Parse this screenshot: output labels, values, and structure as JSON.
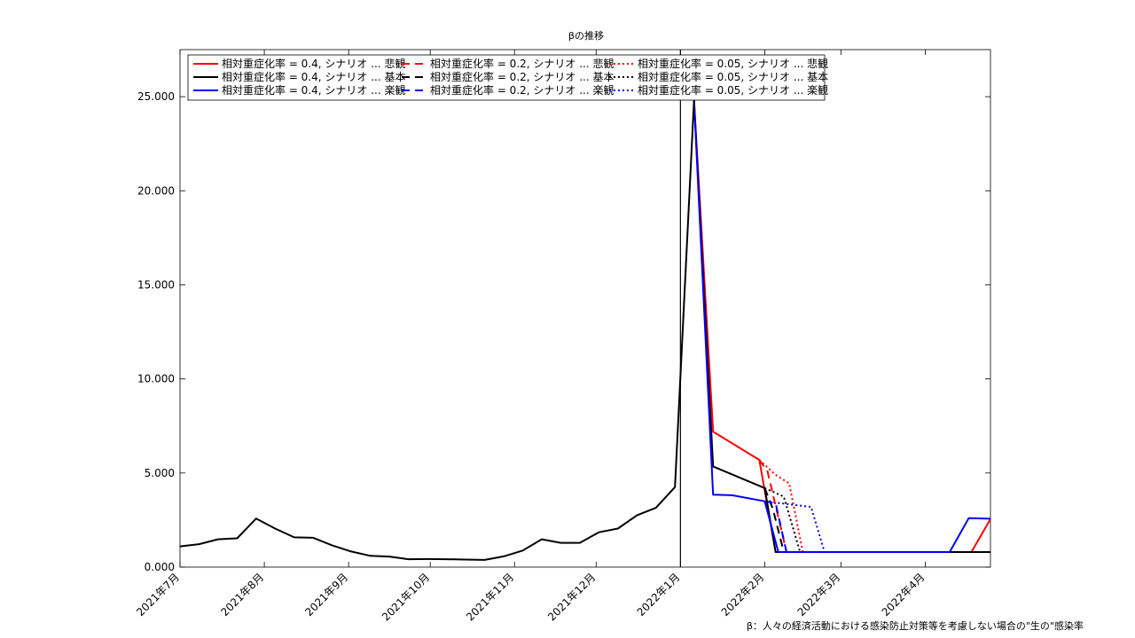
{
  "chart_data": {
    "type": "line",
    "title": "βの推移",
    "footnote": "β：人々の経済活動における感染防止対策等を考慮しない場合の\"生の\"感染率",
    "xlabel": "",
    "ylabel": "",
    "ylim": [
      0,
      27500
    ],
    "xlim": [
      "2021-07-01",
      "2022-04-25"
    ],
    "grid": false,
    "legend_position": "top-left",
    "y_ticks": [
      0,
      5000,
      10000,
      15000,
      20000,
      25000
    ],
    "y_tick_labels": [
      "0.000",
      "5.000",
      "10.000",
      "15.000",
      "20.000",
      "25.000"
    ],
    "x_ticks": [
      "2021-07-01",
      "2021-08-01",
      "2021-09-01",
      "2021-10-01",
      "2021-11-01",
      "2021-12-01",
      "2022-01-01",
      "2022-02-01",
      "2022-03-01",
      "2022-04-01"
    ],
    "x_tick_labels": [
      "2021年7月",
      "2021年8月",
      "2021年9月",
      "2021年10月",
      "2021年11月",
      "2021年12月",
      "2022年1月",
      "2022年2月",
      "2022年3月",
      "2022年4月"
    ],
    "vertical_line": "2022-01-01",
    "history": {
      "color": "#000000",
      "points": [
        [
          "2021-07-01",
          1100
        ],
        [
          "2021-07-08",
          1220
        ],
        [
          "2021-07-15",
          1480
        ],
        [
          "2021-07-22",
          1530
        ],
        [
          "2021-07-29",
          2580
        ],
        [
          "2021-08-05",
          2050
        ],
        [
          "2021-08-12",
          1580
        ],
        [
          "2021-08-19",
          1560
        ],
        [
          "2021-08-26",
          1150
        ],
        [
          "2021-09-02",
          830
        ],
        [
          "2021-09-09",
          600
        ],
        [
          "2021-09-16",
          560
        ],
        [
          "2021-09-23",
          420
        ],
        [
          "2021-09-30",
          430
        ],
        [
          "2021-10-07",
          420
        ],
        [
          "2021-10-14",
          400
        ],
        [
          "2021-10-21",
          380
        ],
        [
          "2021-10-28",
          570
        ],
        [
          "2021-11-04",
          880
        ],
        [
          "2021-11-11",
          1480
        ],
        [
          "2021-11-18",
          1290
        ],
        [
          "2021-11-25",
          1290
        ],
        [
          "2021-12-02",
          1850
        ],
        [
          "2021-12-09",
          2050
        ],
        [
          "2021-12-16",
          2750
        ],
        [
          "2021-12-23",
          3150
        ],
        [
          "2021-12-30",
          4250
        ],
        [
          "2022-01-06",
          24800
        ]
      ]
    },
    "series": [
      {
        "name": "相対重症化率 = 0.4, シナリオ ... 悲観",
        "color": "#ff0000",
        "dash": "solid",
        "points": [
          [
            "2022-01-06",
            24800
          ],
          [
            "2022-01-13",
            7200
          ],
          [
            "2022-01-30",
            5700
          ],
          [
            "2022-02-05",
            800
          ],
          [
            "2022-04-18",
            800
          ],
          [
            "2022-04-25",
            2550
          ]
        ]
      },
      {
        "name": "相対重症化率 = 0.4, シナリオ ... 基本",
        "color": "#000000",
        "dash": "solid",
        "points": [
          [
            "2022-01-06",
            24800
          ],
          [
            "2022-01-13",
            5350
          ],
          [
            "2022-02-01",
            4200
          ],
          [
            "2022-02-05",
            800
          ],
          [
            "2022-04-25",
            800
          ]
        ]
      },
      {
        "name": "相対重症化率 = 0.4, シナリオ ... 楽観",
        "color": "#0000ff",
        "dash": "solid",
        "points": [
          [
            "2022-01-06",
            24800
          ],
          [
            "2022-01-13",
            3850
          ],
          [
            "2022-01-20",
            3820
          ],
          [
            "2022-02-01",
            3500
          ],
          [
            "2022-02-06",
            800
          ],
          [
            "2022-04-10",
            800
          ],
          [
            "2022-04-17",
            2600
          ],
          [
            "2022-04-25",
            2570
          ]
        ]
      },
      {
        "name": "相対重症化率 = 0.2, シナリオ ... 悲観",
        "color": "#ff0000",
        "dash": "dash",
        "points": [
          [
            "2022-01-30",
            5700
          ],
          [
            "2022-02-02",
            5100
          ],
          [
            "2022-02-09",
            800
          ],
          [
            "2022-04-25",
            800
          ]
        ]
      },
      {
        "name": "相対重症化率 = 0.2, シナリオ ... 基本",
        "color": "#000000",
        "dash": "dash",
        "points": [
          [
            "2022-02-01",
            4200
          ],
          [
            "2022-02-04",
            3100
          ],
          [
            "2022-02-08",
            800
          ],
          [
            "2022-04-25",
            800
          ]
        ]
      },
      {
        "name": "相対重症化率 = 0.2, シナリオ ... 楽観",
        "color": "#0000ff",
        "dash": "dash",
        "points": [
          [
            "2022-02-01",
            3500
          ],
          [
            "2022-02-05",
            3400
          ],
          [
            "2022-02-09",
            800
          ],
          [
            "2022-04-25",
            800
          ]
        ]
      },
      {
        "name": "相対重症化率 = 0.05, シナリオ ... 悲観",
        "color": "#ff0000",
        "dash": "dot",
        "points": [
          [
            "2022-01-30",
            5700
          ],
          [
            "2022-02-05",
            4900
          ],
          [
            "2022-02-10",
            4450
          ],
          [
            "2022-02-15",
            800
          ],
          [
            "2022-04-25",
            800
          ]
        ]
      },
      {
        "name": "相対重症化率 = 0.05, シナリオ ... 基本",
        "color": "#000000",
        "dash": "dot",
        "points": [
          [
            "2022-02-01",
            4200
          ],
          [
            "2022-02-08",
            3750
          ],
          [
            "2022-02-14",
            800
          ],
          [
            "2022-04-25",
            800
          ]
        ]
      },
      {
        "name": "相対重症化率 = 0.05, シナリオ ... 楽観",
        "color": "#0000ff",
        "dash": "dot",
        "points": [
          [
            "2022-02-01",
            3500
          ],
          [
            "2022-02-12",
            3300
          ],
          [
            "2022-02-18",
            3200
          ],
          [
            "2022-02-23",
            800
          ],
          [
            "2022-04-25",
            800
          ]
        ]
      }
    ]
  }
}
